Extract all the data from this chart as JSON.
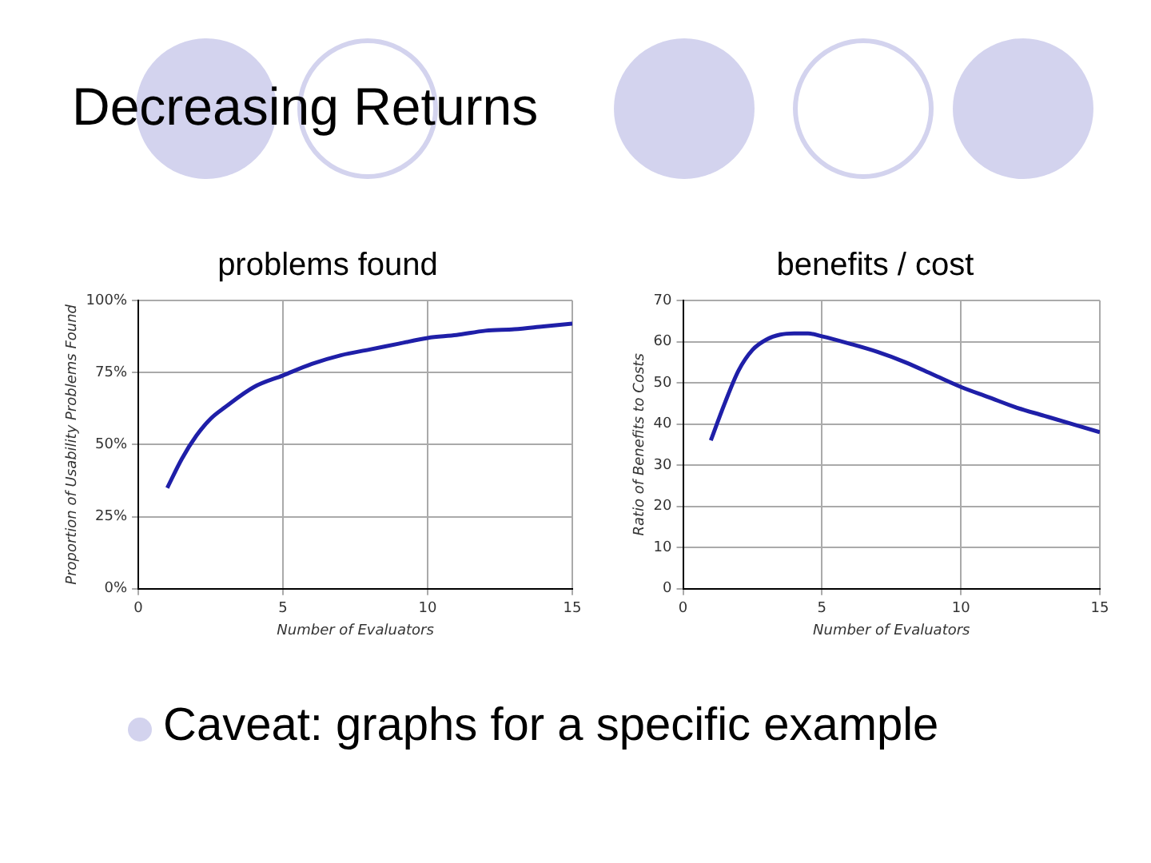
{
  "chart_data": [
    {
      "type": "other",
      "title": "Decreasing Returns",
      "annotations": [
        "Caveat: graphs for a specific example"
      ]
    },
    {
      "type": "line",
      "title": "problems found",
      "xlabel": "Number of Evaluators",
      "ylabel": "Proportion of Usability Problems Found",
      "xlim": [
        0,
        15
      ],
      "xticks": [
        0,
        5,
        10,
        15
      ],
      "ylim": [
        0,
        100
      ],
      "yticks": [
        {
          "value": 0,
          "label": "0%"
        },
        {
          "value": 25,
          "label": "25%"
        },
        {
          "value": 50,
          "label": "50%"
        },
        {
          "value": 75,
          "label": "75%"
        },
        {
          "value": 100,
          "label": "100%"
        }
      ],
      "grid": true,
      "legend": false,
      "marker": "none",
      "line_style": "solid",
      "series": [
        {
          "color": "#1f1fa8",
          "x": [
            1,
            1.5,
            2,
            2.5,
            3,
            4,
            5,
            6,
            7,
            8,
            9,
            10,
            11,
            12,
            13,
            14,
            15
          ],
          "values": [
            35,
            45,
            53,
            59,
            63,
            70,
            74,
            78,
            81,
            83,
            85,
            87,
            88,
            89.5,
            90,
            91,
            92
          ]
        }
      ]
    },
    {
      "type": "line",
      "title": "benefits / cost",
      "xlabel": "Number of Evaluators",
      "ylabel": "Ratio of Benefits to Costs",
      "xlim": [
        0,
        15
      ],
      "xticks": [
        0,
        5,
        10,
        15
      ],
      "ylim": [
        0,
        70
      ],
      "yticks": [
        0,
        10,
        20,
        30,
        40,
        50,
        60,
        70
      ],
      "grid": true,
      "legend": false,
      "marker": "none",
      "line_style": "solid",
      "series": [
        {
          "color": "#1f1fa8",
          "x": [
            1,
            1.5,
            2,
            2.5,
            3,
            3.5,
            4,
            4.5,
            5,
            6,
            7,
            8,
            9,
            10,
            11,
            12,
            13,
            14,
            15
          ],
          "values": [
            36,
            45,
            53,
            58,
            60.5,
            61.7,
            62,
            62,
            61.3,
            59.5,
            57.5,
            55,
            52,
            49,
            46.5,
            44,
            42,
            40,
            38
          ]
        }
      ]
    }
  ]
}
